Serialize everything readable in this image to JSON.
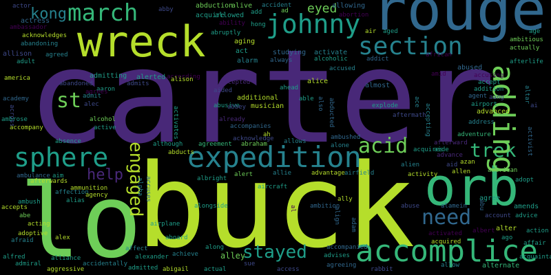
{
  "palette": {
    "background": "#000000",
    "yellowgreen": "#b5de2b",
    "green": "#6ece58",
    "teal": "#35b779",
    "cyan": "#1f9e89",
    "blue": "#26828e",
    "steel": "#31688e",
    "indigo": "#3e4989",
    "purple": "#482878",
    "darkpurple": "#440154"
  },
  "words": [
    "carter",
    "buck",
    "rouge",
    "wreck",
    "lo",
    "orb",
    "expedition",
    "accomplice",
    "adding",
    "johnny",
    "march",
    "section",
    "sphere",
    "engaged",
    "acid",
    "st",
    "trek",
    "need",
    "stayed",
    "help",
    "kong",
    "eyed",
    "actor",
    "abby",
    "abduction",
    "alive",
    "allowing",
    "actress",
    "ambassador",
    "acknowledges",
    "abandoning",
    "ad",
    "acquire",
    "allowed",
    "abortion",
    "accident",
    "add",
    "ability",
    "hong",
    "air",
    "aged",
    "age",
    "ambitious",
    "actually",
    "allison",
    "agreed",
    "america",
    "adult",
    "abruptly",
    "aging",
    "act",
    "studying",
    "alarm",
    "always",
    "activate",
    "alcoholic",
    "addict",
    "african",
    "abused",
    "accusing",
    "afterlife",
    "admitting",
    "alerted",
    "according",
    "alison",
    "accused",
    "amid",
    "academy",
    "abandoned",
    "aaron",
    "agrees",
    "admits",
    "accepted",
    "alice",
    "additional",
    "almost",
    "accept",
    "aang",
    "agent",
    "airport",
    "addition",
    "altar",
    "across",
    "admit",
    "alec",
    "aided",
    "abusive",
    "musician",
    "abbey",
    "already",
    "ahead",
    "able",
    "also",
    "abducted",
    "aftermath",
    "ace",
    "accepting",
    "advanced",
    "explode",
    "ambrose",
    "accompany",
    "alcohol",
    "active",
    "activates",
    "accompanies",
    "acknowledge",
    "abraham",
    "ah",
    "allows",
    "ambushed",
    "alone",
    "address",
    "activist",
    "adventure",
    "afterward",
    "absence",
    "although",
    "agreement",
    "acquires",
    "aide",
    "advance",
    "azan",
    "aid",
    "abducts",
    "allen",
    "american",
    "afterwards",
    "ambulance",
    "aim",
    "accuses",
    "alpha",
    "allie",
    "advantage",
    "airfield",
    "alien",
    "activity",
    "adopt",
    "accepts",
    "ammunition",
    "affection",
    "agency",
    "albright",
    "alert",
    "aircraft",
    "agree",
    "ambush",
    "abe",
    "alias",
    "alongside",
    "ally",
    "abuse",
    "alamein",
    "amends",
    "acting",
    "al",
    "align",
    "adam",
    "account",
    "advice",
    "adoptive",
    "afraid",
    "airplane",
    "alex",
    "albert",
    "alter",
    "action",
    "ago",
    "affair",
    "alfred",
    "admiral",
    "aggressive",
    "alliance",
    "accidentally",
    "affect",
    "alexander",
    "admitted",
    "achieve",
    "abigail",
    "aboard",
    "along",
    "actual",
    "alley",
    "sue",
    "access",
    "ambition",
    "accompanied",
    "advises",
    "agreeing",
    "rabbit",
    "activated",
    "acquired",
    "allow",
    "alternate",
    "acquaintance",
    "abu",
    "ai",
    "ak"
  ]
}
